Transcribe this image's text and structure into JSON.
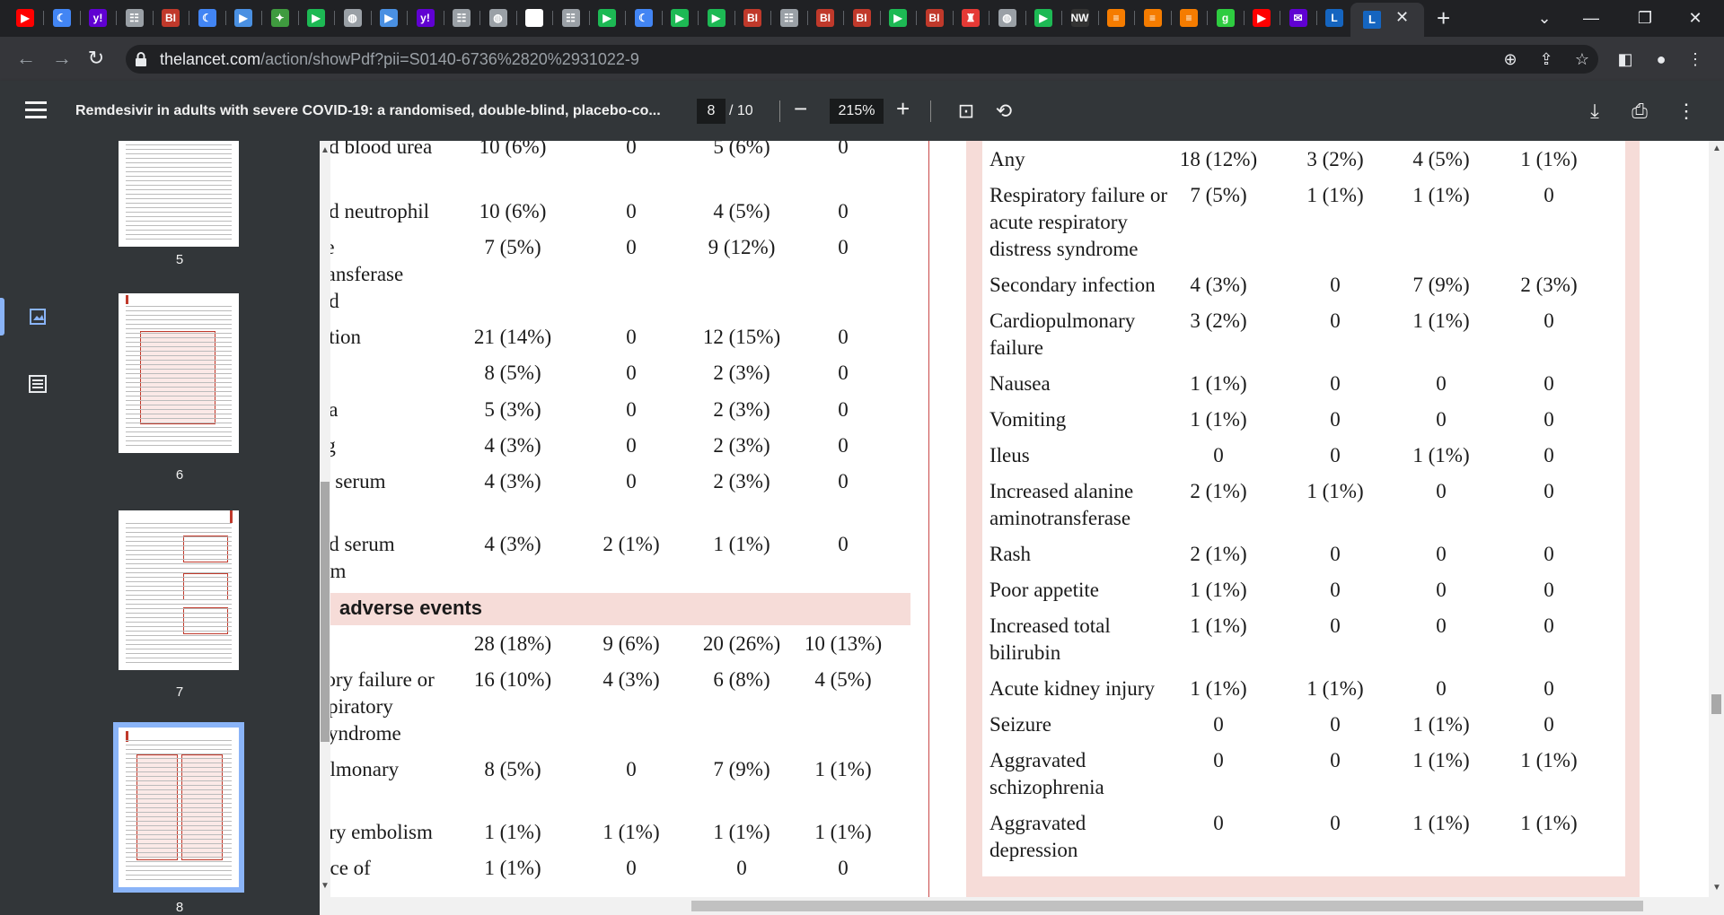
{
  "browser": {
    "tabs_favicons": [
      {
        "glyph": "▶",
        "color": "#ff0000"
      },
      {
        "glyph": "☾",
        "color": "#4285f4"
      },
      {
        "glyph": "y!",
        "color": "#6001d2"
      },
      {
        "glyph": "☷",
        "color": "#9aa0a6"
      },
      {
        "glyph": "BI",
        "color": "#c0392b"
      },
      {
        "glyph": "☾",
        "color": "#4285f4"
      },
      {
        "glyph": "▶",
        "color": "#4a90e2"
      },
      {
        "glyph": "✦",
        "color": "#3f9b3f"
      },
      {
        "glyph": "▶",
        "color": "#1db954"
      },
      {
        "glyph": "◍",
        "color": "#9aa0a6"
      },
      {
        "glyph": "▶",
        "color": "#4a90e2"
      },
      {
        "glyph": "y!",
        "color": "#6001d2"
      },
      {
        "glyph": "☷",
        "color": "#9aa0a6"
      },
      {
        "glyph": "◍",
        "color": "#9aa0a6"
      },
      {
        "glyph": "✎",
        "color": "#ffffff"
      },
      {
        "glyph": "☷",
        "color": "#9aa0a6"
      },
      {
        "glyph": "▶",
        "color": "#1db954"
      },
      {
        "glyph": "☾",
        "color": "#4285f4"
      },
      {
        "glyph": "▶",
        "color": "#1db954"
      },
      {
        "glyph": "▶",
        "color": "#1db954"
      },
      {
        "glyph": "BI",
        "color": "#c0392b"
      },
      {
        "glyph": "☷",
        "color": "#9aa0a6"
      },
      {
        "glyph": "BI",
        "color": "#c0392b"
      },
      {
        "glyph": "BI",
        "color": "#c0392b"
      },
      {
        "glyph": "▶",
        "color": "#1db954"
      },
      {
        "glyph": "BI",
        "color": "#c0392b"
      },
      {
        "glyph": "♜",
        "color": "#e53935"
      },
      {
        "glyph": "◍",
        "color": "#9aa0a6"
      },
      {
        "glyph": "▶",
        "color": "#1db954"
      },
      {
        "glyph": "NW",
        "color": "#333333"
      },
      {
        "glyph": "≡",
        "color": "#f57c00"
      },
      {
        "glyph": "≡",
        "color": "#f57c00"
      },
      {
        "glyph": "≡",
        "color": "#f57c00"
      },
      {
        "glyph": "g",
        "color": "#2ecc40"
      },
      {
        "glyph": "▶",
        "color": "#ff0000"
      },
      {
        "glyph": "✉",
        "color": "#6001d2"
      },
      {
        "glyph": "L",
        "color": "#1565c0"
      }
    ],
    "url_host": "thelancet.com",
    "url_path": "/action/showPdf?pii=S0140-6736%2820%2931022-9"
  },
  "pdf_toolbar": {
    "title": "Remdesivir in adults with severe COVID-19: a randomised, double-blind, placebo-co...",
    "current_page": "8",
    "page_total": "/ 10",
    "zoom": "215%"
  },
  "sidebar": {
    "thumbnails": [
      {
        "label": "5"
      },
      {
        "label": "6"
      },
      {
        "label": "7"
      },
      {
        "label": "8"
      }
    ]
  },
  "left_table": {
    "rows": [
      {
        "label": "ed blood urea\nn",
        "c1": "10 (6%)",
        "c2": "0",
        "c3": "5 (6%)",
        "c4": "0"
      },
      {
        "label": "ed neutrophil",
        "c1": "10 (6%)",
        "c2": "0",
        "c3": "4 (5%)",
        "c4": "0"
      },
      {
        "label": "te\nransferase\ned",
        "c1": "7 (5%)",
        "c2": "0",
        "c3": "9 (12%)",
        "c4": "0"
      },
      {
        "label": "ation",
        "c1": "21 (14%)",
        "c2": "0",
        "c3": "12 (15%)",
        "c4": "0"
      },
      {
        "label": "",
        "c1": "8 (5%)",
        "c2": "0",
        "c3": "2 (3%)",
        "c4": "0"
      },
      {
        "label": "ea",
        "c1": "5 (3%)",
        "c2": "0",
        "c3": "2 (3%)",
        "c4": "0"
      },
      {
        "label": "ıg",
        "c1": "4 (3%)",
        "c2": "0",
        "c3": "2 (3%)",
        "c4": "0"
      },
      {
        "label": "d serum",
        "c1": "4 (3%)",
        "c2": "0",
        "c3": "2 (3%)",
        "c4": "0"
      },
      {
        "label": "ed serum\num",
        "c1": "4 (3%)",
        "c2": "2 (1%)",
        "c3": "1 (1%)",
        "c4": "0"
      }
    ],
    "section_title": "adverse events",
    "rows2": [
      {
        "label": "",
        "c1": "28 (18%)",
        "c2": "9 (6%)",
        "c3": "20 (26%)",
        "c4": "10 (13%)"
      },
      {
        "label": "tory failure or\nspiratory\nsyndrome",
        "c1": "16 (10%)",
        "c2": "4 (3%)",
        "c3": "6 (8%)",
        "c4": "4 (5%)"
      },
      {
        "label": "ulmonary",
        "c1": "8 (5%)",
        "c2": "0",
        "c3": "7 (9%)",
        "c4": "1 (1%)"
      },
      {
        "label": "ary embolism",
        "c1": "1 (1%)",
        "c2": "1 (1%)",
        "c3": "1 (1%)",
        "c4": "1 (1%)"
      },
      {
        "label": "nce of",
        "c1": "1 (1%)",
        "c2": "0",
        "c3": "0",
        "c4": "0"
      }
    ]
  },
  "right_table": {
    "rows": [
      {
        "label": "Any",
        "c1": "18 (12%)",
        "c2": "3 (2%)",
        "c3": "4 (5%)",
        "c4": "1 (1%)"
      },
      {
        "label": "Respiratory failure or\nacute respiratory\ndistress syndrome",
        "c1": "7 (5%)",
        "c2": "1 (1%)",
        "c3": "1 (1%)",
        "c4": "0"
      },
      {
        "label": "Secondary infection",
        "c1": "4 (3%)",
        "c2": "0",
        "c3": "7 (9%)",
        "c4": "2 (3%)"
      },
      {
        "label": "Cardiopulmonary\nfailure",
        "c1": "3 (2%)",
        "c2": "0",
        "c3": "1 (1%)",
        "c4": "0"
      },
      {
        "label": "Nausea",
        "c1": "1 (1%)",
        "c2": "0",
        "c3": "0",
        "c4": "0"
      },
      {
        "label": "Vomiting",
        "c1": "1 (1%)",
        "c2": "0",
        "c3": "0",
        "c4": "0"
      },
      {
        "label": "Ileus",
        "c1": "0",
        "c2": "0",
        "c3": "1 (1%)",
        "c4": "0"
      },
      {
        "label": "Increased alanine\naminotransferase",
        "c1": "2 (1%)",
        "c2": "1 (1%)",
        "c3": "0",
        "c4": "0"
      },
      {
        "label": "Rash",
        "c1": "2 (1%)",
        "c2": "0",
        "c3": "0",
        "c4": "0"
      },
      {
        "label": "Poor appetite",
        "c1": "1 (1%)",
        "c2": "0",
        "c3": "0",
        "c4": "0"
      },
      {
        "label": "Increased total\nbilirubin",
        "c1": "1 (1%)",
        "c2": "0",
        "c3": "0",
        "c4": "0"
      },
      {
        "label": "Acute kidney injury",
        "c1": "1 (1%)",
        "c2": "1 (1%)",
        "c3": "0",
        "c4": "0"
      },
      {
        "label": "Seizure",
        "c1": "0",
        "c2": "0",
        "c3": "1 (1%)",
        "c4": "0"
      },
      {
        "label": "Aggravated\nschizophrenia",
        "c1": "0",
        "c2": "0",
        "c3": "1 (1%)",
        "c4": "1 (1%)"
      },
      {
        "label": "Aggravated\ndepression",
        "c1": "0",
        "c2": "0",
        "c3": "1 (1%)",
        "c4": "1 (1%)"
      }
    ]
  }
}
